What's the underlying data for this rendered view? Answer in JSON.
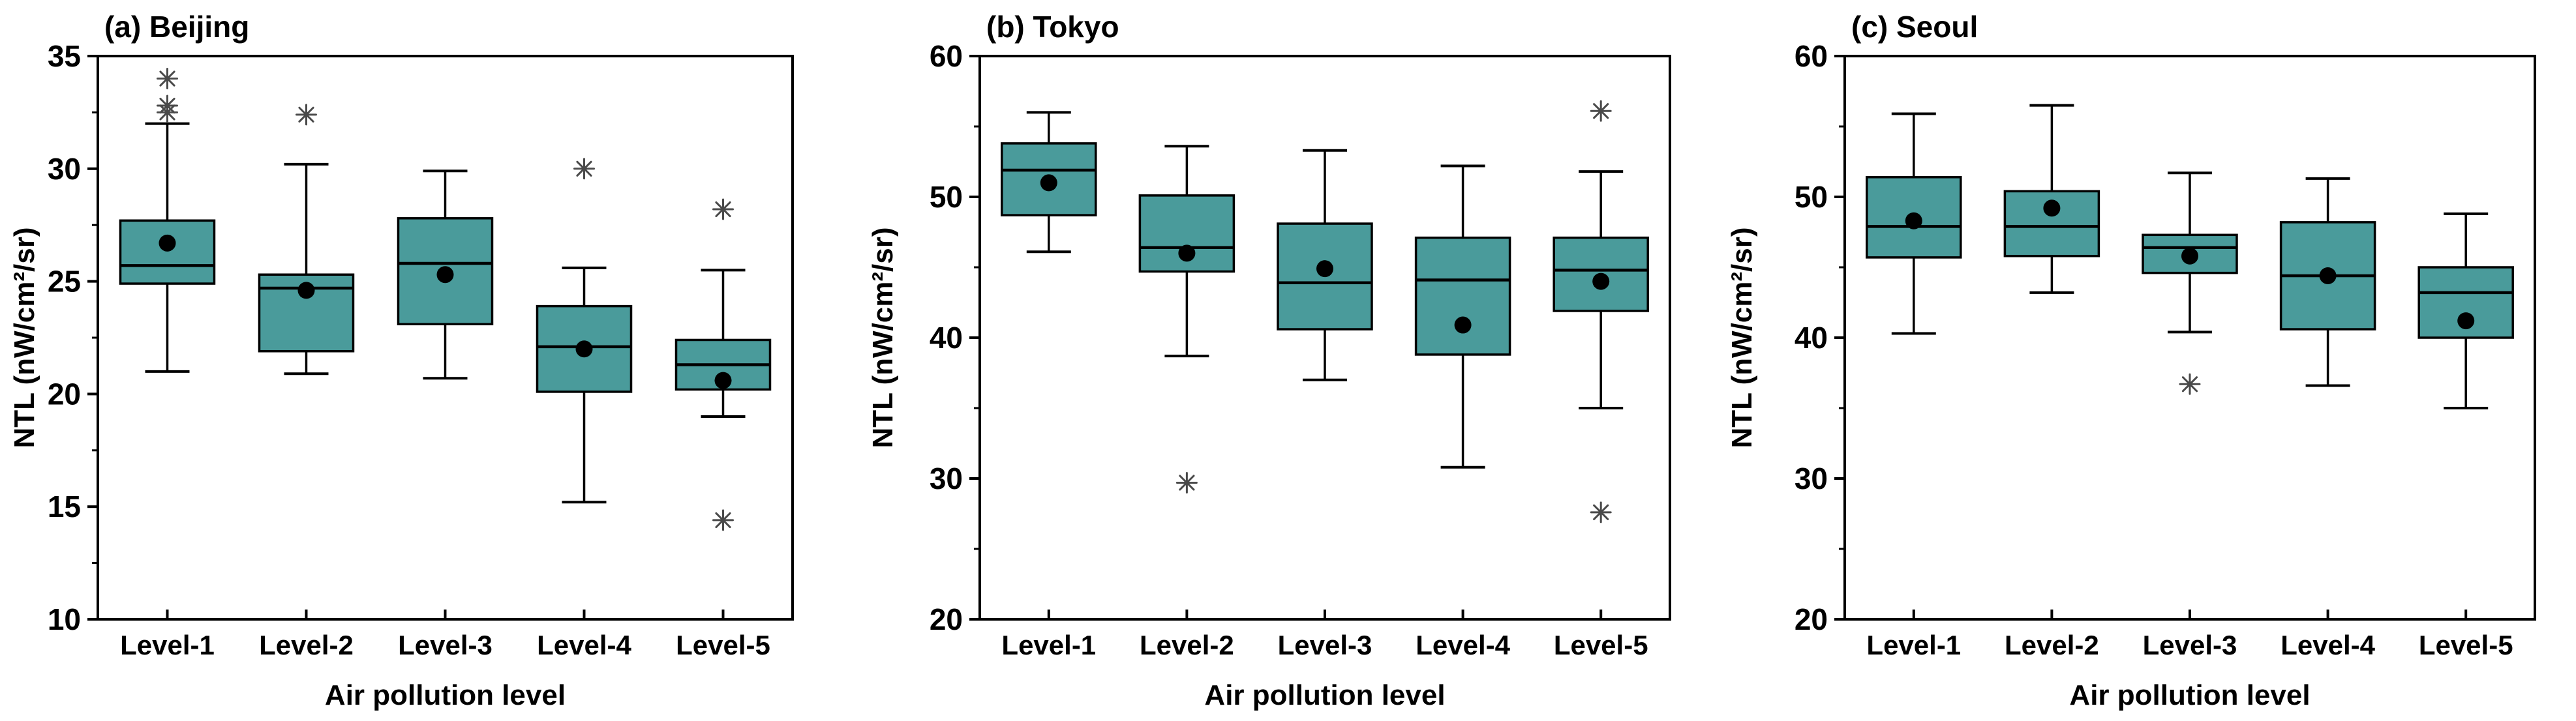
{
  "figure": {
    "background": "#FFFFFF",
    "box_fill": "#4A9B9B",
    "box_border": "#000000",
    "median_color": "#000000",
    "whisker_color": "#000000",
    "mean_marker_color": "#000000",
    "outlier_marker_color": "#4A4A4A",
    "axis_color": "#000000",
    "mean_marker_shape": "filled-circle",
    "outlier_marker_shape": "eight-spoke-star"
  },
  "chart_data": [
    {
      "type": "box",
      "title": "(a) Beijing",
      "xlabel": "Air pollution level",
      "ylabel": "NTL (nW/cm²/sr)",
      "categories": [
        "Level-1",
        "Level-2",
        "Level-3",
        "Level-4",
        "Level-5"
      ],
      "ylim": [
        10,
        35
      ],
      "yticks": [
        10,
        15,
        20,
        25,
        30,
        35
      ],
      "yminorticks": [
        12.5,
        17.5,
        22.5,
        27.5,
        32.5
      ],
      "grid": false,
      "series": [
        {
          "category": "Level-1",
          "whisker_low": 21.0,
          "q1": 24.9,
          "median": 25.7,
          "q3": 27.7,
          "whisker_high": 32.0,
          "mean": 26.7,
          "outliers": [
            32.5,
            32.8,
            34.0
          ]
        },
        {
          "category": "Level-2",
          "whisker_low": 20.9,
          "q1": 21.9,
          "median": 24.7,
          "q3": 25.3,
          "whisker_high": 30.2,
          "mean": 24.6,
          "outliers": [
            32.4
          ]
        },
        {
          "category": "Level-3",
          "whisker_low": 20.7,
          "q1": 23.1,
          "median": 25.8,
          "q3": 27.8,
          "whisker_high": 29.9,
          "mean": 25.3,
          "outliers": []
        },
        {
          "category": "Level-4",
          "whisker_low": 15.2,
          "q1": 20.1,
          "median": 22.1,
          "q3": 23.9,
          "whisker_high": 25.6,
          "mean": 22.0,
          "outliers": [
            30.0
          ]
        },
        {
          "category": "Level-5",
          "whisker_low": 19.0,
          "q1": 20.2,
          "median": 21.3,
          "q3": 22.4,
          "whisker_high": 25.5,
          "mean": 20.6,
          "outliers": [
            14.4,
            28.2
          ]
        }
      ]
    },
    {
      "type": "box",
      "title": "(b) Tokyo",
      "xlabel": "Air pollution level",
      "ylabel": "NTL (nW/cm²/sr)",
      "categories": [
        "Level-1",
        "Level-2",
        "Level-3",
        "Level-4",
        "Level-5"
      ],
      "ylim": [
        20,
        60
      ],
      "yticks": [
        20,
        30,
        40,
        50,
        60
      ],
      "yminorticks": [
        25,
        35,
        45,
        55
      ],
      "grid": false,
      "series": [
        {
          "category": "Level-1",
          "whisker_low": 46.1,
          "q1": 48.7,
          "median": 51.9,
          "q3": 53.8,
          "whisker_high": 56.0,
          "mean": 51.0,
          "outliers": []
        },
        {
          "category": "Level-2",
          "whisker_low": 38.7,
          "q1": 44.7,
          "median": 46.4,
          "q3": 50.1,
          "whisker_high": 53.6,
          "mean": 46.0,
          "outliers": [
            29.7
          ]
        },
        {
          "category": "Level-3",
          "whisker_low": 37.0,
          "q1": 40.6,
          "median": 43.9,
          "q3": 48.1,
          "whisker_high": 53.3,
          "mean": 44.9,
          "outliers": []
        },
        {
          "category": "Level-4",
          "whisker_low": 30.8,
          "q1": 38.8,
          "median": 44.1,
          "q3": 47.1,
          "whisker_high": 52.2,
          "mean": 40.9,
          "outliers": []
        },
        {
          "category": "Level-5",
          "whisker_low": 35.0,
          "q1": 41.9,
          "median": 44.8,
          "q3": 47.1,
          "whisker_high": 51.8,
          "mean": 44.0,
          "outliers": [
            27.6,
            56.1
          ]
        }
      ]
    },
    {
      "type": "box",
      "title": "(c) Seoul",
      "xlabel": "Air pollution level",
      "ylabel": "NTL (nW/cm²/sr)",
      "categories": [
        "Level-1",
        "Level-2",
        "Level-3",
        "Level-4",
        "Level-5"
      ],
      "ylim": [
        20,
        60
      ],
      "yticks": [
        20,
        30,
        40,
        50,
        60
      ],
      "yminorticks": [
        25,
        35,
        45,
        55
      ],
      "grid": false,
      "series": [
        {
          "category": "Level-1",
          "whisker_low": 40.3,
          "q1": 45.7,
          "median": 47.9,
          "q3": 51.4,
          "whisker_high": 55.9,
          "mean": 48.3,
          "outliers": []
        },
        {
          "category": "Level-2",
          "whisker_low": 43.2,
          "q1": 45.8,
          "median": 47.9,
          "q3": 50.4,
          "whisker_high": 56.5,
          "mean": 49.2,
          "outliers": []
        },
        {
          "category": "Level-3",
          "whisker_low": 40.4,
          "q1": 44.6,
          "median": 46.4,
          "q3": 47.3,
          "whisker_high": 51.7,
          "mean": 45.8,
          "outliers": [
            36.7
          ]
        },
        {
          "category": "Level-4",
          "whisker_low": 36.6,
          "q1": 40.6,
          "median": 44.4,
          "q3": 48.2,
          "whisker_high": 51.3,
          "mean": 44.4,
          "outliers": []
        },
        {
          "category": "Level-5",
          "whisker_low": 35.0,
          "q1": 40.0,
          "median": 43.2,
          "q3": 45.0,
          "whisker_high": 48.8,
          "mean": 41.2,
          "outliers": []
        }
      ]
    }
  ]
}
